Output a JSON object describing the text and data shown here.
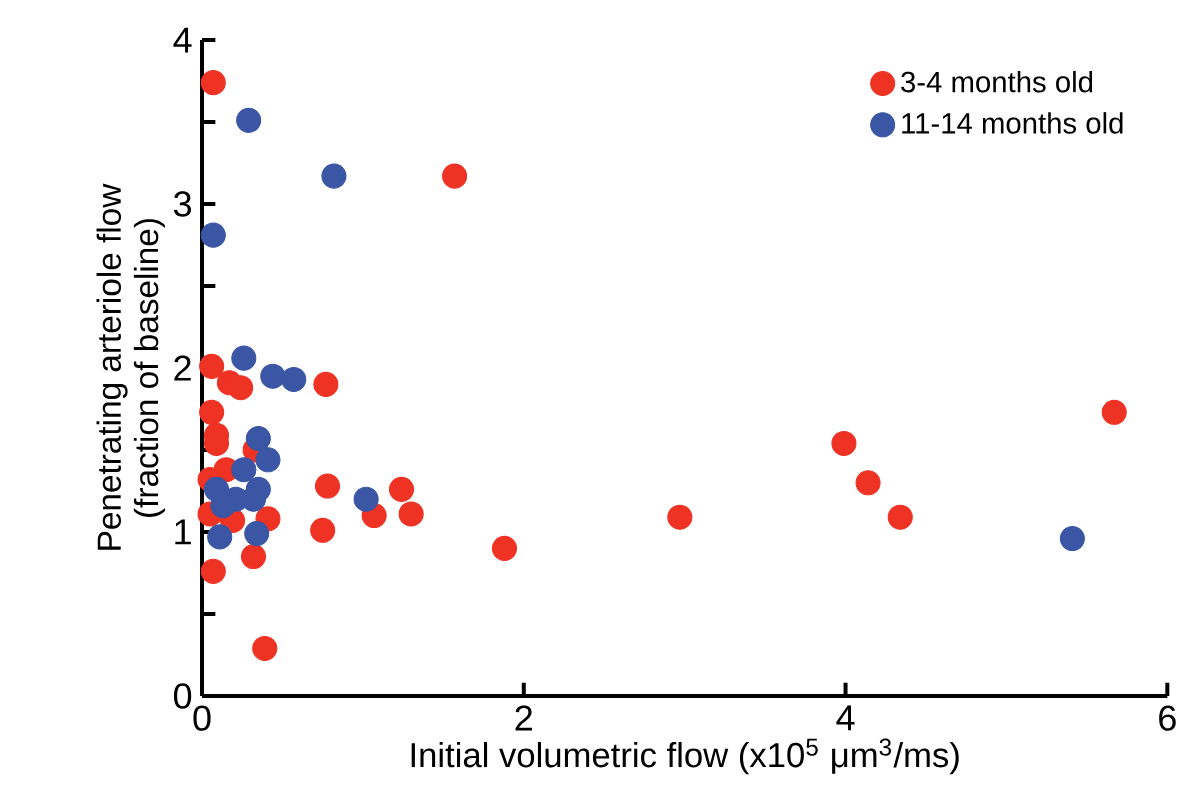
{
  "chart_data": {
    "type": "scatter",
    "xlabel": "Initial volumetric flow (x10$^{5}$ μm$^{3}$/ms)",
    "ylabel": "Penetrating arteriole flow\n(fraction of baseline)",
    "xlim": [
      0,
      6
    ],
    "ylim": [
      0,
      4
    ],
    "xticks": [
      0,
      2,
      4,
      6
    ],
    "yticks": [
      0,
      {
        "value": 0.5,
        "label": null
      },
      1,
      {
        "value": 1.5,
        "label": null
      },
      2,
      {
        "value": 2.5,
        "label": null
      },
      3,
      {
        "value": 3.5,
        "label": null
      },
      4
    ],
    "legend": "top right",
    "marker": "circle",
    "grid": false,
    "series": [
      {
        "name": "3-4 months old",
        "color": "#ee3224",
        "x": [
          0.07,
          1.57,
          0.06,
          0.17,
          0.24,
          0.77,
          0.06,
          0.09,
          0.09,
          0.33,
          0.15,
          0.05,
          0.78,
          1.24,
          1.07,
          1.3,
          0.41,
          0.05,
          0.19,
          0.75,
          0.32,
          0.07,
          0.39,
          1.88,
          2.97,
          3.99,
          4.14,
          4.34,
          5.67
        ],
        "values": [
          3.74,
          3.17,
          2.01,
          1.91,
          1.88,
          1.9,
          1.73,
          1.59,
          1.54,
          1.5,
          1.38,
          1.32,
          1.28,
          1.26,
          1.1,
          1.11,
          1.08,
          1.11,
          1.07,
          1.01,
          0.85,
          0.76,
          0.29,
          0.9,
          1.09,
          1.54,
          1.3,
          1.09,
          1.73
        ]
      },
      {
        "name": "11-14 months old",
        "color": "#3a56a5",
        "x": [
          0.29,
          0.82,
          0.07,
          0.26,
          0.44,
          0.57,
          0.35,
          0.41,
          0.26,
          0.09,
          0.35,
          0.21,
          0.32,
          0.13,
          1.02,
          0.34,
          0.11,
          5.41
        ],
        "values": [
          3.51,
          3.17,
          2.81,
          2.06,
          1.95,
          1.93,
          1.57,
          1.44,
          1.38,
          1.26,
          1.26,
          1.2,
          1.2,
          1.16,
          1.2,
          0.99,
          0.97,
          0.96
        ]
      }
    ]
  }
}
